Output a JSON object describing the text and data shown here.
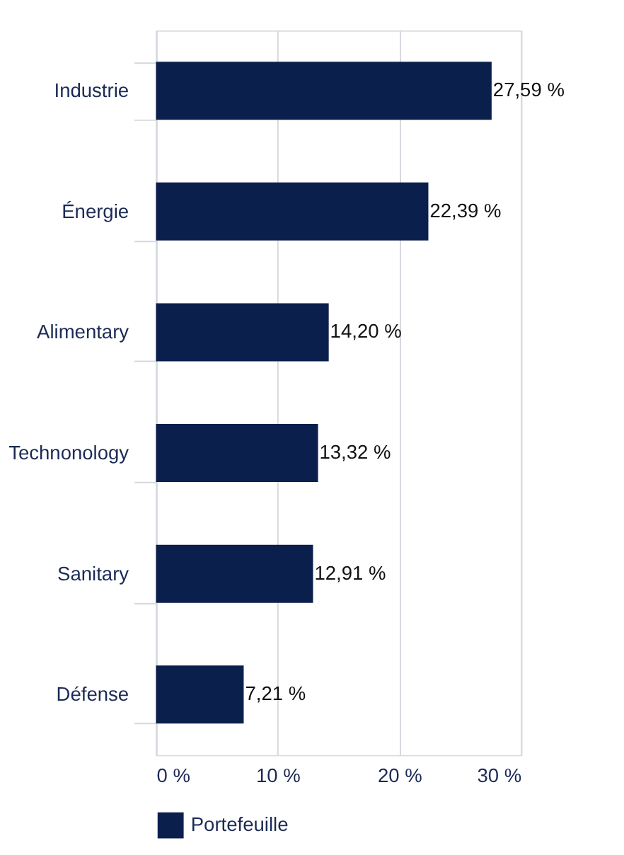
{
  "chart_data": {
    "type": "bar",
    "orientation": "horizontal",
    "categories": [
      "Industrie",
      "Énergie",
      "Alimentary",
      "Technonology",
      "Sanitary",
      "Défense"
    ],
    "series": [
      {
        "name": "Portefeuille",
        "color": "#0b1f4d",
        "values": [
          27.59,
          22.39,
          14.2,
          13.32,
          12.91,
          7.21
        ],
        "value_labels": [
          "27,59 %",
          "22,39 %",
          "14,20 %",
          "13,32 %",
          "12,91 %",
          "7,21 %"
        ]
      }
    ],
    "xlim": [
      0,
      30
    ],
    "xticks": [
      {
        "value": 0,
        "label": "0 %"
      },
      {
        "value": 10,
        "label": "10 %"
      },
      {
        "value": 20,
        "label": "20 %"
      },
      {
        "value": 30,
        "label": "30 %"
      }
    ],
    "grid": "x",
    "legend": "bottom"
  }
}
